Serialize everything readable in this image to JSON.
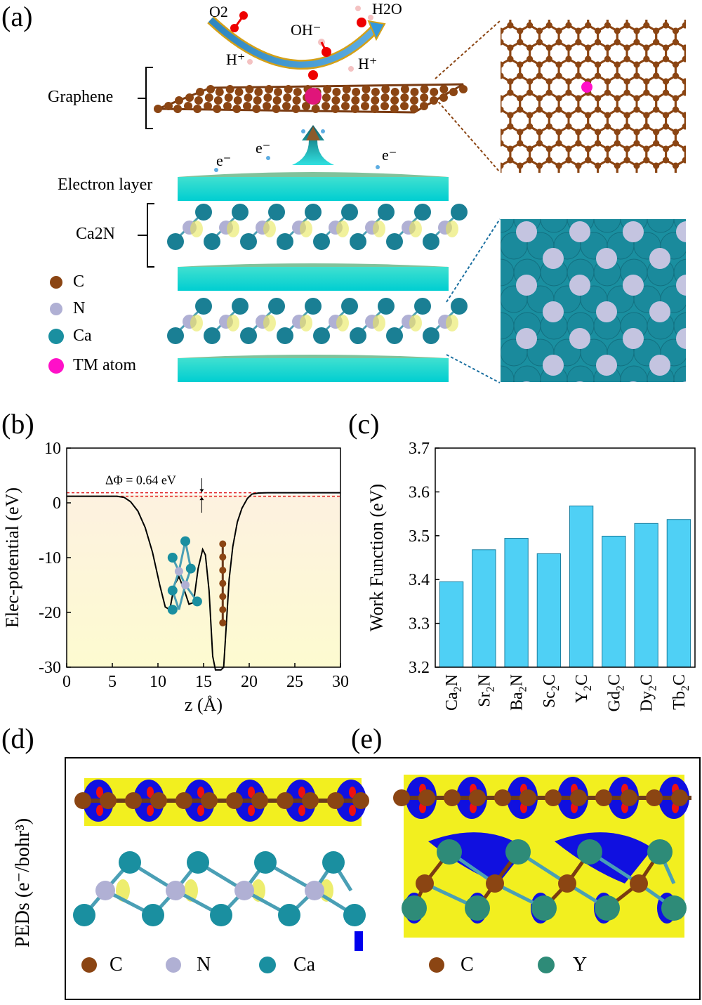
{
  "panels": {
    "a": "(a)",
    "b": "(b)",
    "c": "(c)",
    "d": "(d)",
    "e": "(e)"
  },
  "panel_a": {
    "species": {
      "o2": "O2",
      "oh": "OH⁻",
      "h2o": "H2O",
      "h_left": "H⁺",
      "h_right": "H⁺"
    },
    "electrons": [
      "e⁻",
      "e⁻",
      "e⁻"
    ],
    "graphene_label": "Graphene",
    "electron_layer_label": "Electron layer",
    "ca2n_label": "Ca2N",
    "legend": [
      {
        "symbol": "C",
        "color": "#8b4513"
      },
      {
        "symbol": "N",
        "color": "#b0b0d4"
      },
      {
        "symbol": "Ca",
        "color": "#1a8fa0"
      },
      {
        "symbol": "TM atom",
        "color": "#ff10c8"
      }
    ]
  },
  "chart_data": [
    {
      "type": "line",
      "panel": "b",
      "xlabel": "z (Å)",
      "ylabel": "Elec-potential (eV)",
      "xlim": [
        0,
        30
      ],
      "ylim": [
        -30,
        10
      ],
      "xticks": [
        0,
        5,
        10,
        15,
        20,
        25,
        30
      ],
      "yticks": [
        -30,
        -20,
        -10,
        0,
        10
      ],
      "annotation": "ΔΦ = 0.64 eV",
      "vacuum_levels": [
        1.2,
        1.84
      ],
      "series": [
        {
          "color": "#000000",
          "x": [
            0,
            5.5,
            6.3,
            7,
            7.8,
            8.6,
            9.4,
            10.2,
            10.8,
            11.3,
            11.8,
            12.3,
            12.9,
            13.4,
            13.9,
            14.4,
            14.9,
            15.2,
            15.6,
            16.0,
            16.3,
            16.6,
            16.9,
            17.2,
            17.5,
            17.8,
            18.2,
            18.7,
            19.2,
            19.8,
            20.3,
            21.0,
            22,
            30
          ],
          "y": [
            1.2,
            1.2,
            1.0,
            0.2,
            -1.5,
            -4.5,
            -9,
            -15,
            -19,
            -19.5,
            -15,
            -13.5,
            -16,
            -18.5,
            -18.2,
            -12,
            -8.5,
            -9.5,
            -16,
            -28,
            -32,
            -32,
            -32,
            -30,
            -22,
            -14,
            -8,
            -3.5,
            -1,
            0.8,
            1.6,
            1.8,
            1.84,
            1.84
          ]
        }
      ]
    },
    {
      "type": "bar",
      "panel": "c",
      "ylabel": "Work Function (eV)",
      "ylim": [
        3.2,
        3.7
      ],
      "yticks": [
        3.2,
        3.3,
        3.4,
        3.5,
        3.6,
        3.7
      ],
      "categories": [
        "Ca2N",
        "Sr2N",
        "Ba2N",
        "Sc2C",
        "Y2C",
        "Gd2C",
        "Dy2C",
        "Tb2C"
      ],
      "values": [
        3.395,
        3.468,
        3.494,
        3.459,
        3.568,
        3.499,
        3.528,
        3.537
      ],
      "bar_color": "#4fd0f5"
    }
  ],
  "panel_de": {
    "ylabel": "PEDs (e⁻/bohr³)",
    "legend_d": [
      {
        "symbol": "C",
        "color": "#8b4513"
      },
      {
        "symbol": "N",
        "color": "#b0b0d4"
      },
      {
        "symbol": "Ca",
        "color": "#1a8fa0"
      }
    ],
    "legend_e": [
      {
        "symbol": "C",
        "color": "#8b4513"
      },
      {
        "symbol": "Y",
        "color": "#2e8b78"
      }
    ]
  }
}
